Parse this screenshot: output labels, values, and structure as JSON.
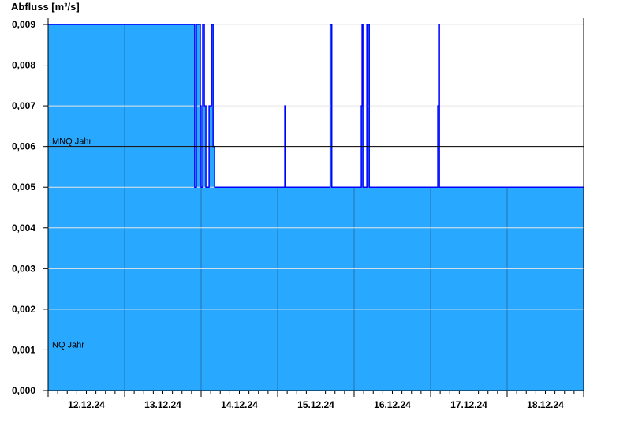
{
  "chart_data": {
    "type": "area",
    "title": "",
    "ylabel": "Abfluss [m³/s]",
    "xlabel": "",
    "ylim": [
      0,
      0.009
    ],
    "yticks": [
      "0,000",
      "0,001",
      "0,002",
      "0,003",
      "0,004",
      "0,005",
      "0,006",
      "0,007",
      "0,008",
      "0,009"
    ],
    "xlim": [
      "12.12.24 00:00",
      "19.12.24 00:00"
    ],
    "xticks": [
      "12.12.24",
      "13.12.24",
      "14.12.24",
      "15.12.24",
      "16.12.24",
      "17.12.24",
      "18.12.24"
    ],
    "grid": true,
    "step": true,
    "series": [
      {
        "points": [
          [
            "12.12.24 00:00",
            0.009
          ],
          [
            "13.12.24 22:00",
            0.005
          ],
          [
            "13.12.24 22:30",
            0.009
          ],
          [
            "13.12.24 23:45",
            0.007
          ],
          [
            "14.12.24 00:00",
            0.005
          ],
          [
            "14.12.24 00:30",
            0.009
          ],
          [
            "14.12.24 01:00",
            0.007
          ],
          [
            "14.12.24 01:30",
            0.005
          ],
          [
            "14.12.24 02:30",
            0.007
          ],
          [
            "14.12.24 03:15",
            0.009
          ],
          [
            "14.12.24 03:45",
            0.006
          ],
          [
            "14.12.24 04:15",
            0.005
          ],
          [
            "15.12.24 02:15",
            0.007
          ],
          [
            "15.12.24 02:30",
            0.005
          ],
          [
            "15.12.24 16:30",
            0.009
          ],
          [
            "15.12.24 17:00",
            0.005
          ],
          [
            "16.12.24 02:15",
            0.007
          ],
          [
            "16.12.24 02:30",
            0.009
          ],
          [
            "16.12.24 02:45",
            0.005
          ],
          [
            "16.12.24 04:00",
            0.009
          ],
          [
            "16.12.24 04:45",
            0.005
          ],
          [
            "17.12.24 02:15",
            0.007
          ],
          [
            "17.12.24 02:30",
            0.009
          ],
          [
            "17.12.24 02:45",
            0.005
          ],
          [
            "19.12.24 00:00",
            0.005
          ]
        ]
      }
    ],
    "reference_lines": [
      {
        "label": "MNQ Jahr",
        "value": 0.006
      },
      {
        "label": "NQ Jahr",
        "value": 0.001
      }
    ],
    "colors": {
      "fill": "#29a8ff",
      "line": "#0000ff",
      "day_line": "#1f5f8f",
      "grid": "#e6e6e6",
      "reference": "#000000"
    }
  }
}
